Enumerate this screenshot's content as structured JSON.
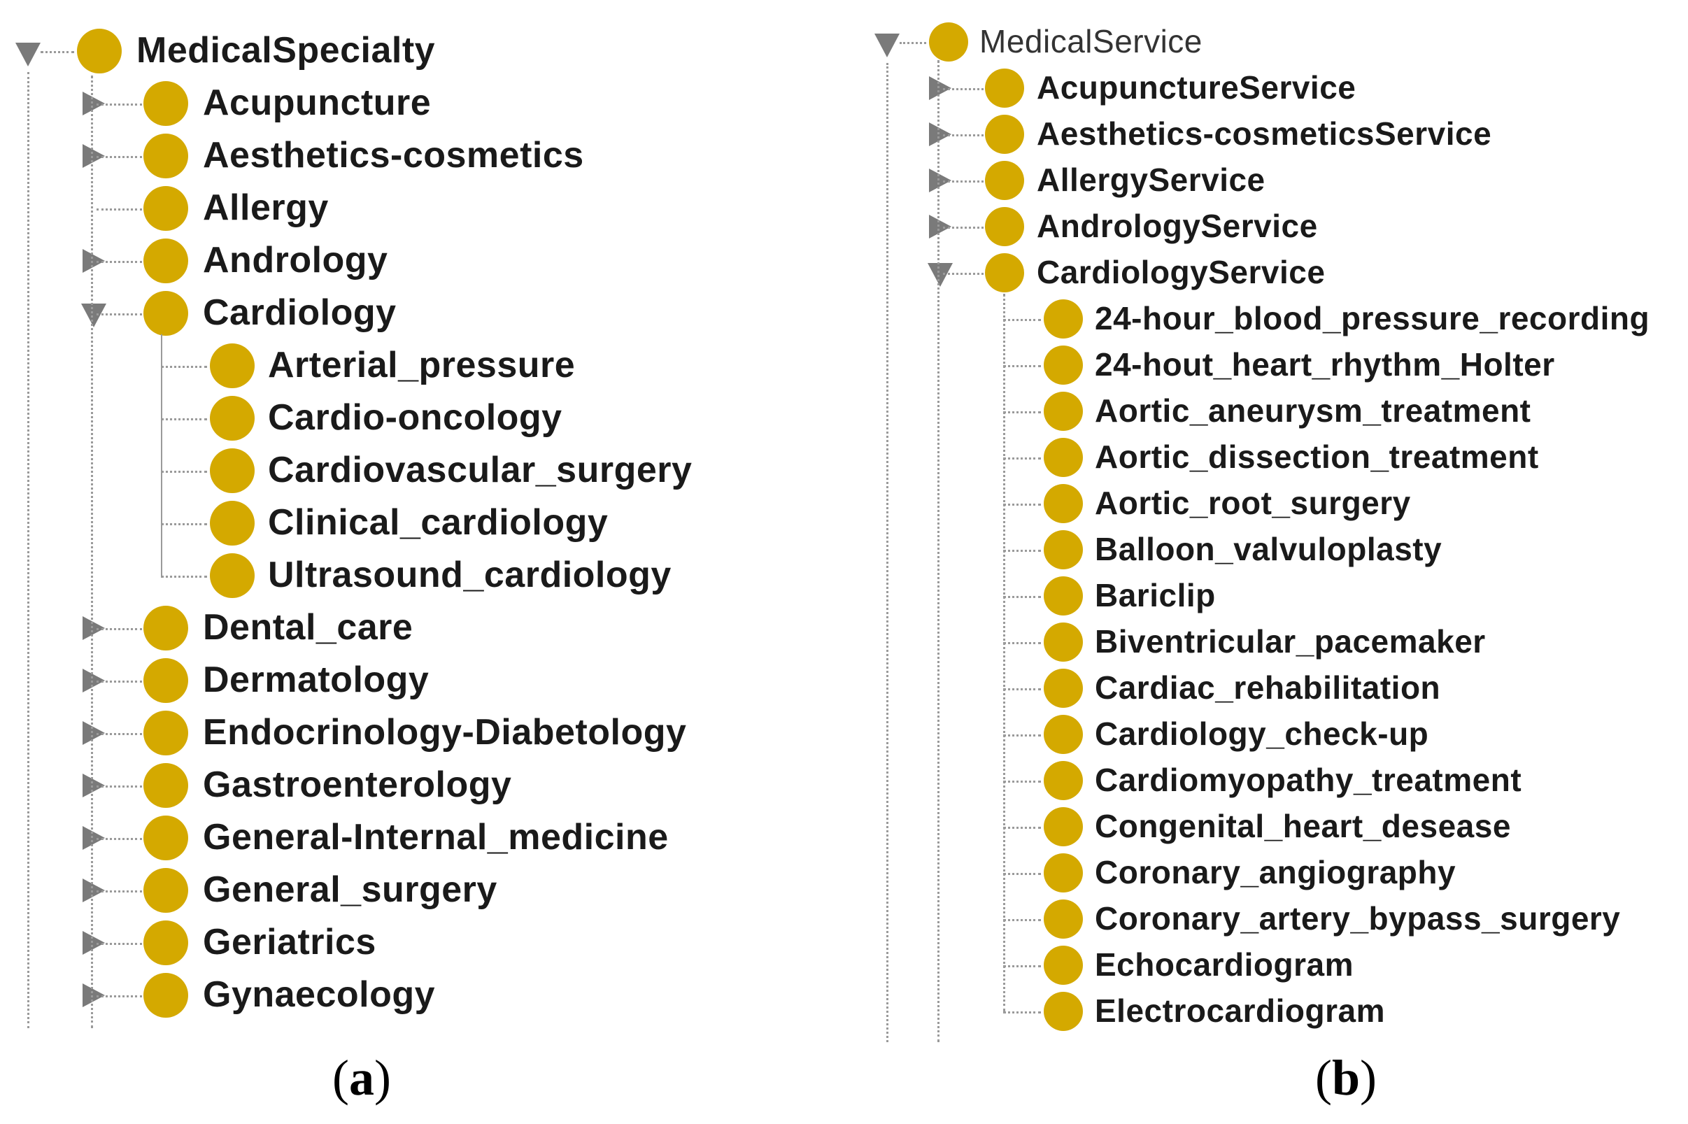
{
  "panel_a": {
    "root": "MedicalSpecialty",
    "items": [
      {
        "label": "Acupuncture",
        "state": "collapsed"
      },
      {
        "label": "Aesthetics-cosmetics",
        "state": "collapsed"
      },
      {
        "label": "Allergy",
        "state": "leaf"
      },
      {
        "label": "Andrology",
        "state": "collapsed"
      },
      {
        "label": "Cardiology",
        "state": "expanded",
        "children": [
          "Arterial_pressure",
          "Cardio-oncology",
          "Cardiovascular_surgery",
          "Clinical_cardiology",
          "Ultrasound_cardiology"
        ]
      },
      {
        "label": "Dental_care",
        "state": "collapsed"
      },
      {
        "label": "Dermatology",
        "state": "collapsed"
      },
      {
        "label": "Endocrinology-Diabetology",
        "state": "collapsed"
      },
      {
        "label": "Gastroenterology",
        "state": "collapsed"
      },
      {
        "label": "General-Internal_medicine",
        "state": "collapsed"
      },
      {
        "label": "General_surgery",
        "state": "collapsed"
      },
      {
        "label": "Geriatrics",
        "state": "collapsed"
      },
      {
        "label": "Gynaecology",
        "state": "collapsed"
      }
    ],
    "caption_open": "(",
    "caption_letter": "a",
    "caption_close": ")"
  },
  "panel_b": {
    "root": "MedicalService",
    "items": [
      {
        "label": "AcupunctureService",
        "state": "collapsed"
      },
      {
        "label": "Aesthetics-cosmeticsService",
        "state": "collapsed"
      },
      {
        "label": "AllergyService",
        "state": "collapsed"
      },
      {
        "label": "AndrologyService",
        "state": "collapsed"
      },
      {
        "label": "CardiologyService",
        "state": "expanded",
        "children": [
          "24-hour_blood_pressure_recording",
          "24-hout_heart_rhythm_Holter",
          "Aortic_aneurysm_treatment",
          "Aortic_dissection_treatment",
          "Aortic_root_surgery",
          "Balloon_valvuloplasty",
          "Bariclip",
          "Biventricular_pacemaker",
          "Cardiac_rehabilitation",
          "Cardiology_check-up",
          "Cardiomyopathy_treatment",
          "Congenital_heart_desease",
          "Coronary_angiography",
          "Coronary_artery_bypass_surgery",
          "Echocardiogram",
          "Electrocardiogram"
        ]
      }
    ],
    "caption_open": "(",
    "caption_letter": "b",
    "caption_close": ")"
  },
  "colors": {
    "node": "#d4a900",
    "toggle": "#7a7a7a",
    "connector": "#9a9a9a"
  },
  "icons": {
    "node": "class-circle-icon",
    "collapsed": "triangle-right-icon",
    "expanded": "triangle-down-icon"
  }
}
